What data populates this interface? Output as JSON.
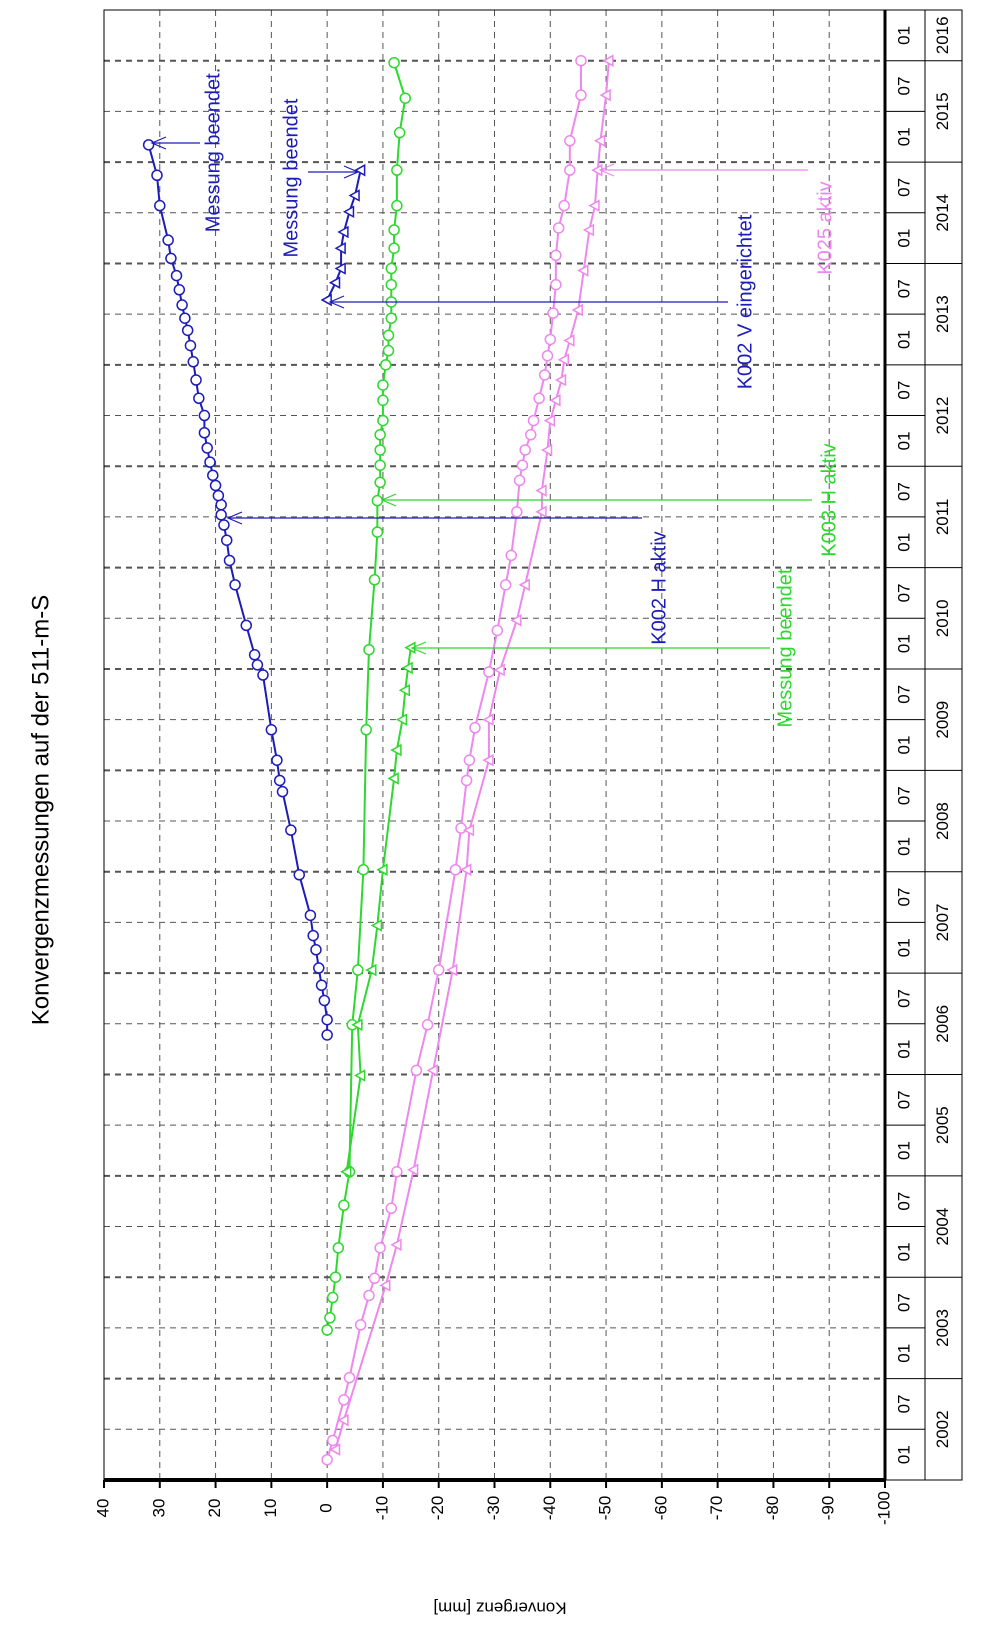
{
  "chart_data": {
    "type": "line",
    "title": "Konvergenzmessungen auf der 511-m-S",
    "ylabel": "Konvergenz [mm]",
    "ylim": [
      -100,
      40
    ],
    "yticks": [
      40,
      30,
      20,
      10,
      0,
      -10,
      -20,
      -30,
      -40,
      -50,
      -60,
      -70,
      -80,
      -90,
      -100
    ],
    "xlim": [
      2002,
      2016.5
    ],
    "xticks": [
      {
        "value": 2002,
        "label": "01"
      },
      {
        "value": 2002.5,
        "label": "07"
      },
      {
        "value": 2003,
        "label": "01"
      },
      {
        "value": 2003.5,
        "label": "07"
      },
      {
        "value": 2004,
        "label": "01"
      },
      {
        "value": 2004.5,
        "label": "07"
      },
      {
        "value": 2005,
        "label": "01"
      },
      {
        "value": 2005.5,
        "label": "07"
      },
      {
        "value": 2006,
        "label": "01"
      },
      {
        "value": 2006.5,
        "label": "07"
      },
      {
        "value": 2007,
        "label": "01"
      },
      {
        "value": 2007.5,
        "label": "07"
      },
      {
        "value": 2008,
        "label": "01"
      },
      {
        "value": 2008.5,
        "label": "07"
      },
      {
        "value": 2009,
        "label": "01"
      },
      {
        "value": 2009.5,
        "label": "07"
      },
      {
        "value": 2010,
        "label": "01"
      },
      {
        "value": 2010.5,
        "label": "07"
      },
      {
        "value": 2011,
        "label": "01"
      },
      {
        "value": 2011.5,
        "label": "07"
      },
      {
        "value": 2012,
        "label": "01"
      },
      {
        "value": 2012.5,
        "label": "07"
      },
      {
        "value": 2013,
        "label": "01"
      },
      {
        "value": 2013.5,
        "label": "07"
      },
      {
        "value": 2014,
        "label": "01"
      },
      {
        "value": 2014.5,
        "label": "07"
      },
      {
        "value": 2015,
        "label": "01"
      },
      {
        "value": 2015.5,
        "label": "07"
      },
      {
        "value": 2016,
        "label": "01"
      }
    ],
    "years": [
      2002,
      2003,
      2004,
      2005,
      2006,
      2007,
      2008,
      2009,
      2010,
      2011,
      2012,
      2013,
      2014,
      2015,
      2016
    ],
    "grid": true,
    "series": [
      {
        "color": "#1c1cb8",
        "marker": "circle",
        "x": [
          2006.39,
          2006.54,
          2006.73,
          2006.88,
          2007.05,
          2007.23,
          2007.37,
          2007.57,
          2007.97,
          2008.41,
          2008.79,
          2008.9,
          2009.1,
          2009.4,
          2009.94,
          2010.04,
          2010.14,
          2010.43,
          2010.83,
          2011.07,
          2011.27,
          2011.42,
          2011.52,
          2011.62,
          2011.71,
          2011.81,
          2011.91,
          2012.04,
          2012.18,
          2012.33,
          2012.5,
          2012.67,
          2012.85,
          2013.03,
          2013.19,
          2013.34,
          2013.46,
          2013.59,
          2013.74,
          2013.88,
          2014.05,
          2014.23,
          2014.57,
          2014.87,
          2015.17
        ],
        "values": [
          0,
          0,
          0.5,
          1,
          1.5,
          2,
          2.5,
          3,
          5,
          6.5,
          8,
          8.5,
          9,
          10,
          11.5,
          12.5,
          13,
          14.5,
          16.5,
          17.5,
          18,
          18.5,
          19,
          19,
          19.5,
          20,
          20.5,
          21,
          21.5,
          22,
          22,
          23,
          23.5,
          24,
          24.5,
          25,
          25.5,
          26,
          26.5,
          27,
          28,
          28.5,
          30,
          30.5,
          32
        ]
      },
      {
        "color": "#1c1cb8",
        "marker": "triangle",
        "x": [
          2013.64,
          2013.81,
          2013.95,
          2014.15,
          2014.31,
          2014.51,
          2014.67,
          2014.92
        ],
        "values": [
          0,
          -1.5,
          -2.5,
          -2.5,
          -3,
          -4,
          -5,
          -6
        ]
      },
      {
        "color": "#2ed82e",
        "marker": "circle",
        "x": [
          2003.48,
          2003.6,
          2003.8,
          2004,
          2004.29,
          2004.71,
          2005.04,
          2006.49,
          2007.03,
          2008.02,
          2009.4,
          2010.19,
          2010.88,
          2011.35,
          2011.66,
          2011.84,
          2012.01,
          2012.16,
          2012.31,
          2012.45,
          2012.65,
          2012.8,
          2013,
          2013.14,
          2013.29,
          2013.46,
          2013.62,
          2013.79,
          2013.95,
          2014.15,
          2014.33,
          2014.57,
          2014.92,
          2015.29,
          2015.63,
          2015.98
        ],
        "values": [
          0,
          -0.5,
          -1,
          -1.5,
          -2,
          -3,
          -4,
          -4.5,
          -5.5,
          -6.5,
          -7,
          -7.5,
          -8.5,
          -9,
          -9,
          -9.5,
          -9.5,
          -9.5,
          -9.5,
          -10,
          -10,
          -10,
          -10.5,
          -11,
          -11,
          -11.5,
          -11.5,
          -11.5,
          -11.5,
          -12,
          -12,
          -12.5,
          -12.5,
          -13,
          -14,
          -12
        ]
      },
      {
        "color": "#2ed82e",
        "marker": "triangle",
        "x": [
          2005.04,
          2005.99,
          2006.49,
          2007.03,
          2007.47,
          2008.02,
          2008.92,
          2009.2,
          2009.5,
          2009.79,
          2010.01,
          2010.21
        ],
        "values": [
          -3.5,
          -6,
          -5.5,
          -8,
          -9,
          -10,
          -12,
          -12.5,
          -13.5,
          -14,
          -14.5,
          -15
        ]
      },
      {
        "color": "#ee88ee",
        "marker": "circle",
        "x": [
          2002.2,
          2002.39,
          2002.79,
          2003.01,
          2003.53,
          2003.82,
          2003.99,
          2004.29,
          2004.68,
          2005.04,
          2006.04,
          2006.49,
          2007.03,
          2008.02,
          2008.43,
          2008.9,
          2009.1,
          2009.42,
          2009.97,
          2010.38,
          2010.83,
          2011.12,
          2011.55,
          2011.86,
          2012.01,
          2012.16,
          2012.31,
          2012.45,
          2012.67,
          2012.9,
          2013.09,
          2013.25,
          2013.51,
          2013.79,
          2014.08,
          2014.35,
          2014.57,
          2014.92,
          2015.21,
          2015.66,
          2016
        ],
        "values": [
          0,
          -1,
          -3,
          -4,
          -6,
          -7.5,
          -8.5,
          -9.5,
          -11.5,
          -12.5,
          -16,
          -18,
          -20,
          -23,
          -24,
          -25,
          -25.5,
          -26.5,
          -29,
          -30.5,
          -32,
          -33,
          -34,
          -34.5,
          -35,
          -35.5,
          -36.5,
          -37,
          -38,
          -39,
          -39.5,
          -40,
          -40.5,
          -41,
          -41,
          -41.5,
          -42.5,
          -43.5,
          -43.5,
          -45.5,
          -45.5
        ]
      },
      {
        "color": "#ee88ee",
        "marker": "triangle",
        "x": [
          2002.3,
          2002.59,
          2003.92,
          2004.32,
          2005.06,
          2006.04,
          2007.03,
          2008.02,
          2008.41,
          2009.1,
          2009.5,
          2009.99,
          2010.48,
          2010.83,
          2011.55,
          2011.76,
          2012.16,
          2012.45,
          2012.65,
          2012.85,
          2013.05,
          2013.24,
          2013.54,
          2013.93,
          2014.33,
          2014.57,
          2014.92,
          2015.21,
          2015.66,
          2016
        ],
        "values": [
          -1.5,
          -3,
          -10.5,
          -12.5,
          -15.5,
          -19,
          -22.5,
          -25,
          -25.5,
          -29,
          -29,
          -31,
          -34,
          -35.5,
          -38.5,
          -38.5,
          -39.5,
          -40,
          -41,
          -42,
          -42.5,
          -43.5,
          -45,
          -46,
          -47,
          -48,
          -48.5,
          -49,
          -50,
          -50.5
        ]
      }
    ],
    "annotations": [
      {
        "text": "Messung beendet.",
        "color": "#1c1cb8"
      },
      {
        "text": "Messung beendet",
        "color": "#1c1cb8"
      },
      {
        "text": "K002 V eingerichtet",
        "color": "#1c1cb8"
      },
      {
        "text": "K025 aktiv",
        "color": "#ee88ee"
      },
      {
        "text": "K003 H aktiv",
        "color": "#2ed82e"
      },
      {
        "text": "K002 H aktiv",
        "color": "#1c1cb8"
      },
      {
        "text": "Messung beendet",
        "color": "#2ed82e"
      }
    ]
  }
}
